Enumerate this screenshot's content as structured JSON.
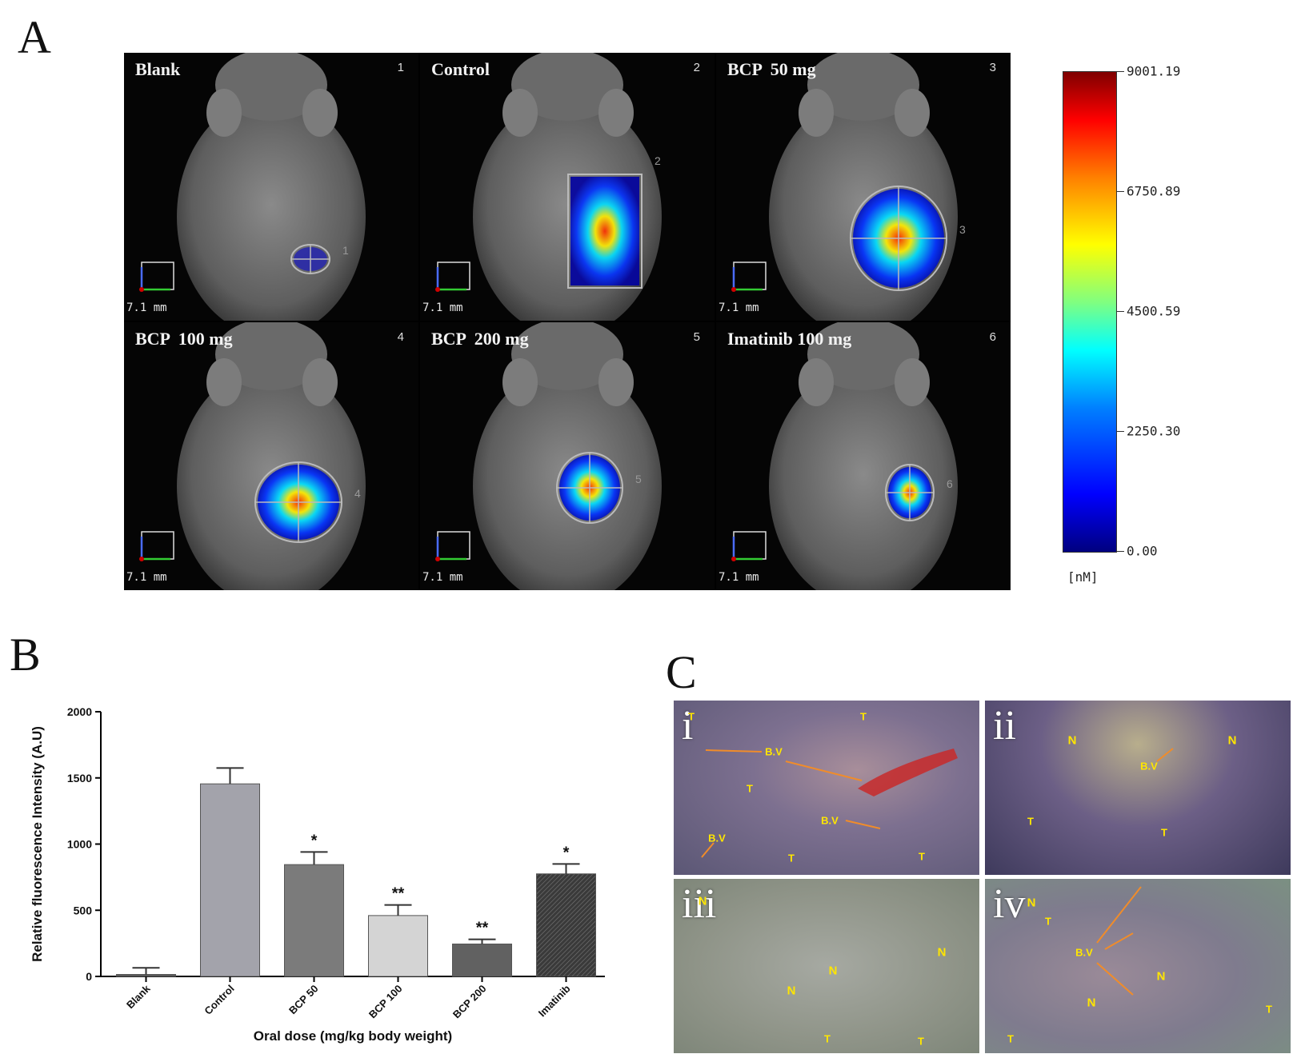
{
  "panel_labels": {
    "a": "A",
    "b": "B",
    "c": "C"
  },
  "imaging": {
    "tiles": [
      {
        "label": "Blank",
        "number": "1",
        "roi_number": "1",
        "scale": "7.1 mm"
      },
      {
        "label": "Control",
        "number": "2",
        "roi_number": "2",
        "scale": "7.1 mm"
      },
      {
        "label": "BCP  50 mg",
        "number": "3",
        "roi_number": "3",
        "scale": "7.1 mm"
      },
      {
        "label": "BCP  100 mg",
        "number": "4",
        "roi_number": "4",
        "scale": "7.1 mm"
      },
      {
        "label": "BCP  200 mg",
        "number": "5",
        "roi_number": "5",
        "scale": "7.1 mm"
      },
      {
        "label": "Imatinib 100 mg",
        "number": "6",
        "roi_number": "6",
        "scale": "7.1 mm"
      }
    ],
    "colorbar": {
      "ticks": [
        "9001.19",
        "6750.89",
        "4500.59",
        "2250.30",
        "0.00"
      ],
      "unit": "[nM]",
      "colors": [
        "#00007f",
        "#0000ff",
        "#00ffff",
        "#ffff00",
        "#ff0000",
        "#7f0000"
      ]
    }
  },
  "chart_data": {
    "type": "bar",
    "categories": [
      "Blank",
      "Control",
      "BCP 50",
      "BCP 100",
      "BCP 200",
      "Imatinib"
    ],
    "values": [
      15,
      1455,
      845,
      460,
      245,
      775
    ],
    "errors": [
      50,
      120,
      95,
      80,
      35,
      75
    ],
    "significance": [
      "",
      "",
      "*",
      "**",
      "**",
      "*"
    ],
    "title": "",
    "xlabel": "Oral dose (mg/kg body weight)",
    "ylabel": "Relative fluorescence Intensity (A.U)",
    "ylim": [
      0,
      2000
    ],
    "yticks": [
      0,
      500,
      1000,
      1500,
      2000
    ],
    "bar_colors": [
      "#5a5a5a",
      "#a3a3ab",
      "#7b7b7b",
      "#d4d4d4",
      "#616161",
      "#3a3a3a"
    ],
    "grid": false,
    "legend": "none"
  },
  "histology": {
    "panels": [
      {
        "numeral": "i",
        "labels": [
          "T",
          "T",
          "T",
          "T",
          "T",
          "B.V",
          "B.V",
          "B.V"
        ]
      },
      {
        "numeral": "ii",
        "labels": [
          "N",
          "N",
          "B.V",
          "T",
          "T"
        ]
      },
      {
        "numeral": "iii",
        "labels": [
          "N",
          "N",
          "N",
          "N",
          "T",
          "T"
        ]
      },
      {
        "numeral": "iv",
        "labels": [
          "N",
          "T",
          "B.V",
          "N",
          "N",
          "T",
          "T"
        ]
      }
    ]
  }
}
